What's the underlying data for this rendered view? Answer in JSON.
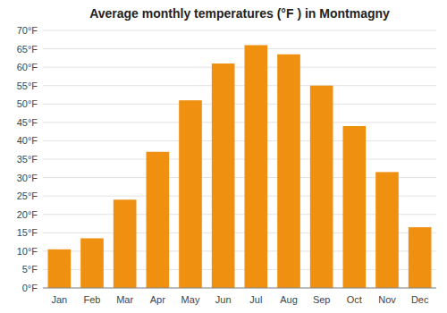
{
  "chart_data": {
    "type": "bar",
    "title": "Average monthly temperatures (°F ) in Montmagny",
    "categories": [
      "Jan",
      "Feb",
      "Mar",
      "Apr",
      "May",
      "Jun",
      "Jul",
      "Aug",
      "Sep",
      "Oct",
      "Nov",
      "Dec"
    ],
    "values": [
      10.5,
      13.5,
      24.0,
      37.0,
      51.0,
      61.0,
      66.0,
      63.5,
      55.0,
      44.0,
      31.5,
      16.5
    ],
    "color": "#F09010",
    "ylim": [
      0,
      70
    ],
    "yticks": [
      {
        "value": 0,
        "label": "0°F"
      },
      {
        "value": 5,
        "label": "5°F"
      },
      {
        "value": 10,
        "label": "10°F"
      },
      {
        "value": 15,
        "label": "15°F"
      },
      {
        "value": 20,
        "label": "20°F"
      },
      {
        "value": 25,
        "label": "25°F"
      },
      {
        "value": 30,
        "label": "30°F"
      },
      {
        "value": 35,
        "label": "35°F"
      },
      {
        "value": 40,
        "label": "40°F"
      },
      {
        "value": 45,
        "label": "45°F"
      },
      {
        "value": 50,
        "label": "50°F"
      },
      {
        "value": 55,
        "label": "55°F"
      },
      {
        "value": 60,
        "label": "60°F"
      },
      {
        "value": 65,
        "label": "65°F"
      },
      {
        "value": 70,
        "label": "70°F"
      }
    ],
    "grid": true
  }
}
